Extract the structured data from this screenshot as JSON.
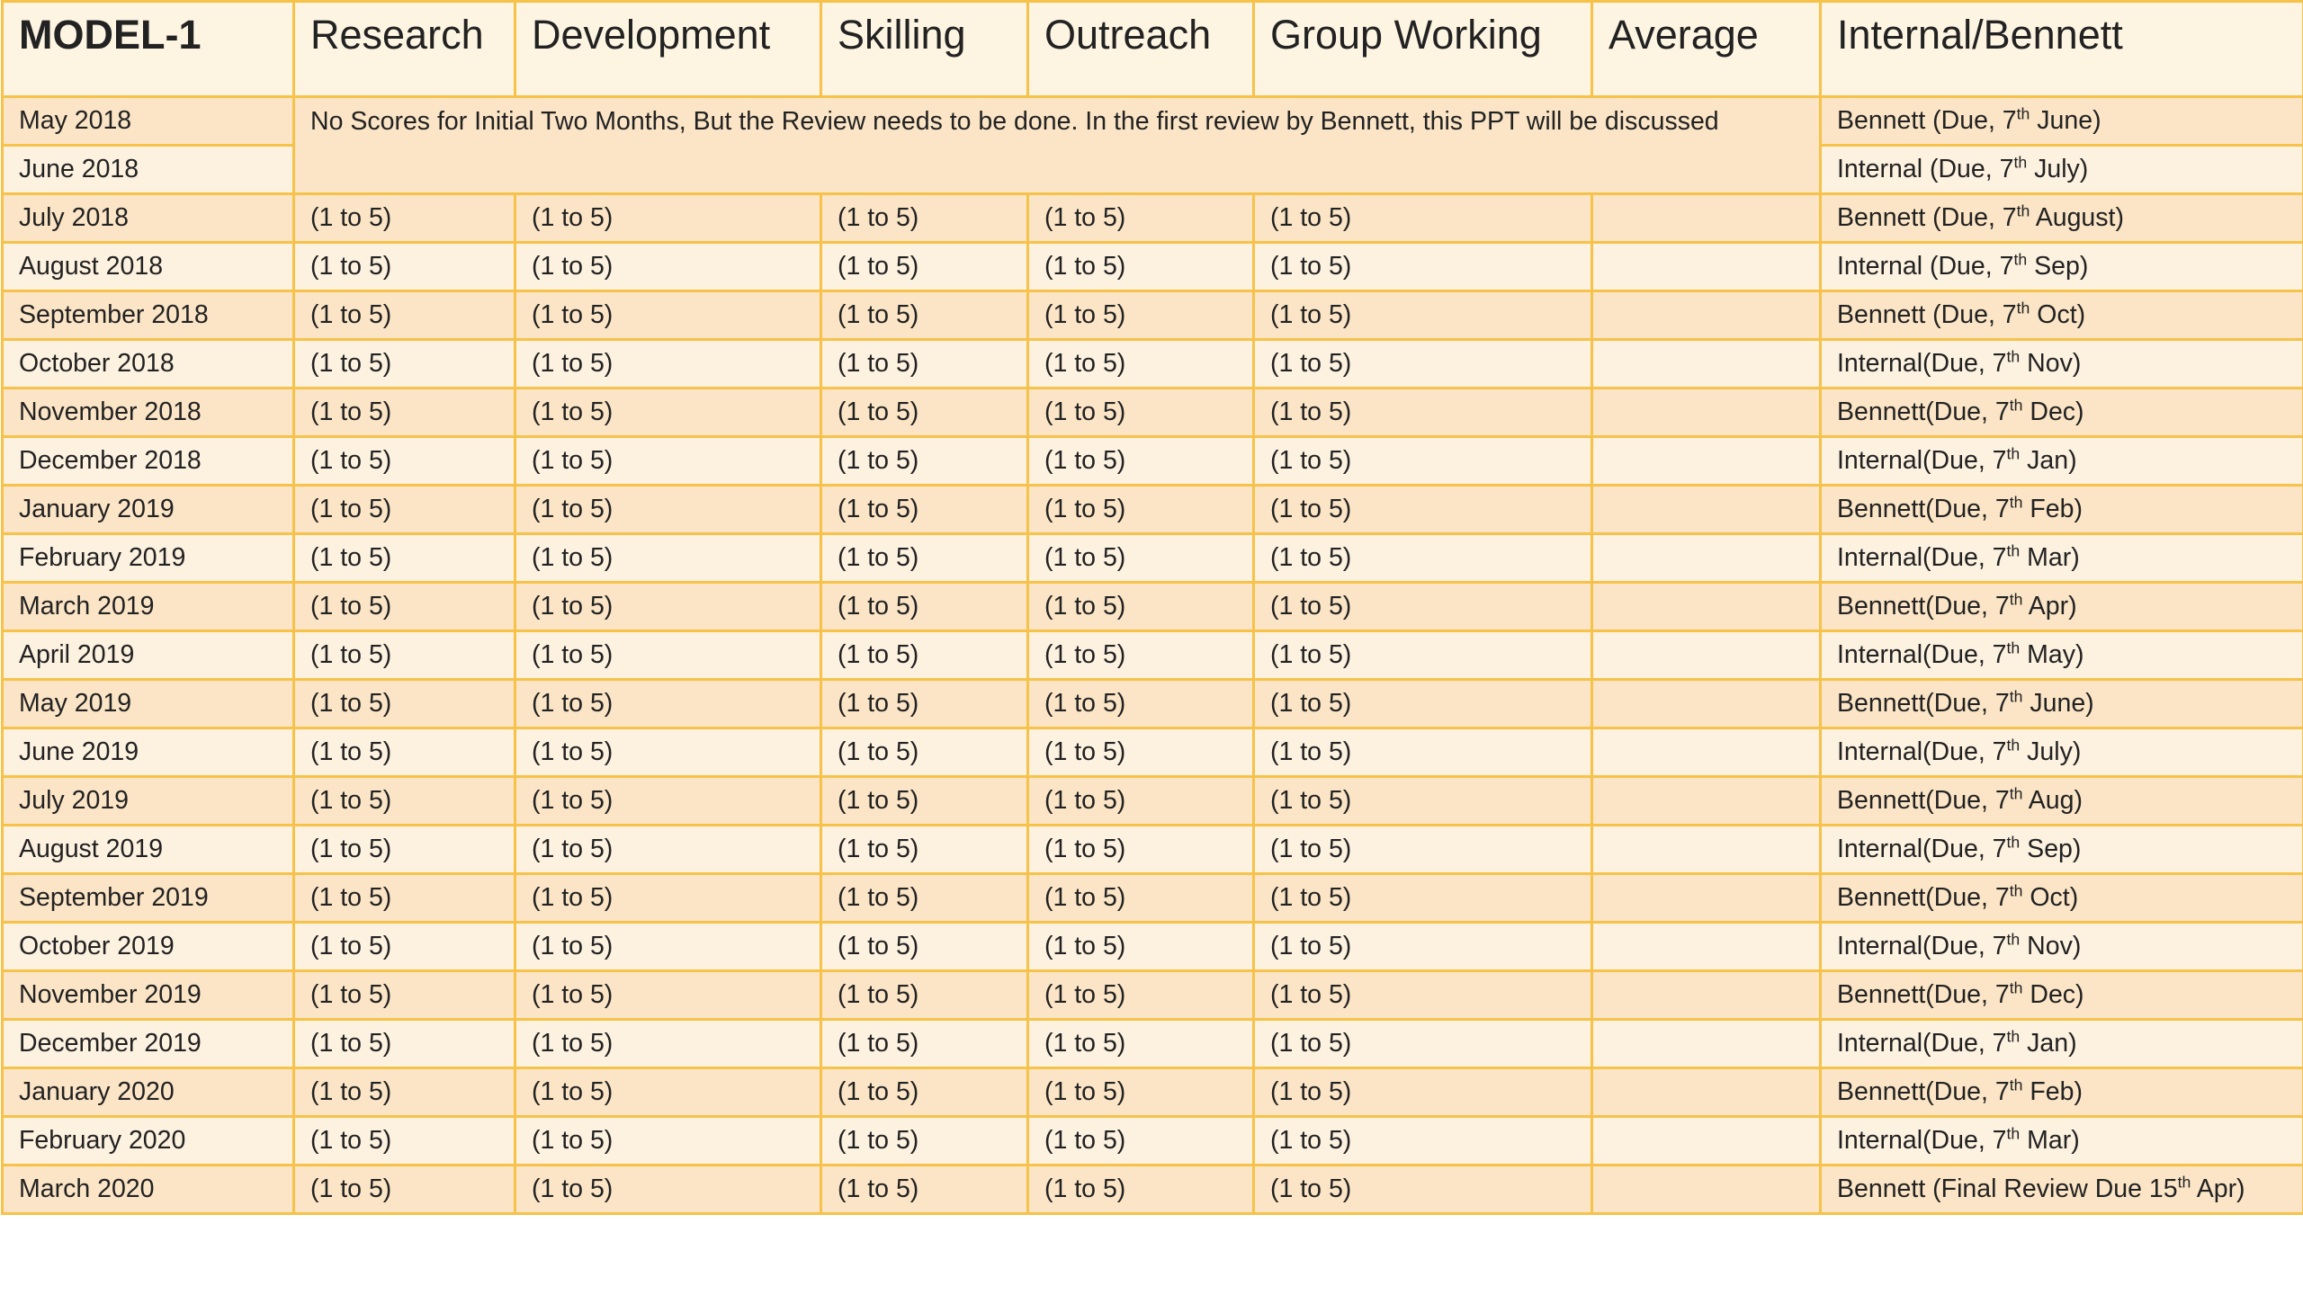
{
  "header": {
    "model": "MODEL-1",
    "columns": [
      "Research",
      "Development",
      "Skilling",
      "Outreach",
      "Group Working",
      "Average",
      "Internal/Bennett"
    ]
  },
  "note": "No Scores for Initial Two Months, But the Review needs to be done. In the first review by Bennett, this PPT will be discussed",
  "score_placeholder": "(1 to 5)",
  "rows": [
    {
      "month": "May 2018",
      "due": {
        "pre": "Bennett (Due, 7",
        "sup": "th",
        "post": " June)"
      }
    },
    {
      "month": "June 2018",
      "due": {
        "pre": "Internal (Due, 7",
        "sup": "th",
        "post": " July)"
      }
    },
    {
      "month": "July 2018",
      "due": {
        "pre": "Bennett (Due, 7",
        "sup": "th",
        "post": " August)"
      }
    },
    {
      "month": "August 2018",
      "due": {
        "pre": "Internal (Due, 7",
        "sup": "th",
        "post": " Sep)"
      }
    },
    {
      "month": "September 2018",
      "due": {
        "pre": "Bennett (Due, 7",
        "sup": "th",
        "post": " Oct)"
      }
    },
    {
      "month": "October 2018",
      "due": {
        "pre": "Internal(Due, 7",
        "sup": "th",
        "post": " Nov)"
      }
    },
    {
      "month": "November 2018",
      "due": {
        "pre": "Bennett(Due, 7",
        "sup": "th",
        "post": " Dec)"
      }
    },
    {
      "month": "December 2018",
      "due": {
        "pre": "Internal(Due, 7",
        "sup": "th",
        "post": " Jan)"
      }
    },
    {
      "month": "January 2019",
      "due": {
        "pre": "Bennett(Due, 7",
        "sup": "th",
        "post": " Feb)"
      }
    },
    {
      "month": "February 2019",
      "due": {
        "pre": "Internal(Due, 7",
        "sup": "th",
        "post": " Mar)"
      }
    },
    {
      "month": "March 2019",
      "due": {
        "pre": "Bennett(Due, 7",
        "sup": "th",
        "post": " Apr)"
      }
    },
    {
      "month": "April 2019",
      "due": {
        "pre": "Internal(Due, 7",
        "sup": "th",
        "post": " May)"
      }
    },
    {
      "month": "May 2019",
      "due": {
        "pre": "Bennett(Due, 7",
        "sup": "th",
        "post": " June)"
      }
    },
    {
      "month": "June 2019",
      "due": {
        "pre": "Internal(Due, 7",
        "sup": "th",
        "post": " July)"
      }
    },
    {
      "month": "July 2019",
      "due": {
        "pre": "Bennett(Due, 7",
        "sup": "th",
        "post": " Aug)"
      }
    },
    {
      "month": "August 2019",
      "due": {
        "pre": "Internal(Due, 7",
        "sup": "th",
        "post": " Sep)"
      }
    },
    {
      "month": "September 2019",
      "due": {
        "pre": "Bennett(Due, 7",
        "sup": "th",
        "post": " Oct)"
      }
    },
    {
      "month": "October 2019",
      "due": {
        "pre": "Internal(Due, 7",
        "sup": "th",
        "post": " Nov)"
      }
    },
    {
      "month": "November 2019",
      "due": {
        "pre": "Bennett(Due, 7",
        "sup": "th",
        "post": " Dec)"
      }
    },
    {
      "month": "December 2019",
      "due": {
        "pre": "Internal(Due, 7",
        "sup": "th",
        "post": " Jan)"
      }
    },
    {
      "month": "January 2020",
      "due": {
        "pre": "Bennett(Due, 7",
        "sup": "th",
        "post": " Feb)"
      }
    },
    {
      "month": "February 2020",
      "due": {
        "pre": "Internal(Due, 7",
        "sup": "th",
        "post": " Mar)"
      }
    },
    {
      "month": "March 2020",
      "due": {
        "pre": "Bennett (Final Review Due 15",
        "sup": "th",
        "post": " Apr)"
      }
    }
  ]
}
